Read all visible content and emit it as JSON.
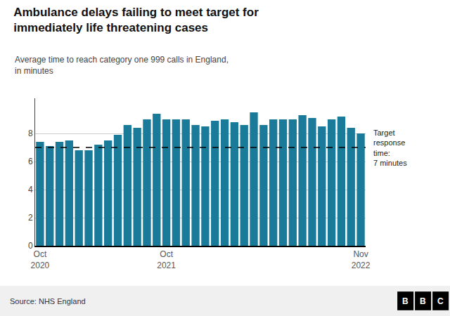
{
  "chart_data": {
    "type": "bar",
    "title": "Ambulance delays failing to meet target for\nimmediately life threatening cases",
    "subtitle": "Average time to reach category one 999 calls in England,\nin minutes",
    "categories": [
      "Oct\n2020",
      null,
      null,
      null,
      null,
      null,
      null,
      null,
      null,
      null,
      null,
      null,
      null,
      "Oct\n2021",
      null,
      null,
      null,
      null,
      null,
      null,
      null,
      null,
      null,
      null,
      null,
      null,
      null,
      null,
      null,
      null,
      null,
      null,
      null,
      "Nov\n2022"
    ],
    "values": [
      7.4,
      7.1,
      7.4,
      7.5,
      6.8,
      6.8,
      7.2,
      7.5,
      7.9,
      8.6,
      8.4,
      9.0,
      9.4,
      9.0,
      9.0,
      9.0,
      8.6,
      8.5,
      8.9,
      9.0,
      8.8,
      8.6,
      9.5,
      8.6,
      9.0,
      9.0,
      9.0,
      9.3,
      9.1,
      8.5,
      9.0,
      9.2,
      8.4,
      8.0
    ],
    "color": "#1a7a9a",
    "ylim": [
      0,
      10.5
    ],
    "yticks": [
      0,
      2,
      4,
      6,
      8
    ],
    "grid": true,
    "target": {
      "value": 7,
      "label": "Target\nresponse\ntime:\n7 minutes",
      "line_style": "dashed",
      "color": "#000000"
    },
    "source": "Source: NHS England",
    "logo": "BBC",
    "background_color": "#ffffff",
    "footer_color": "#f0f0f0"
  }
}
